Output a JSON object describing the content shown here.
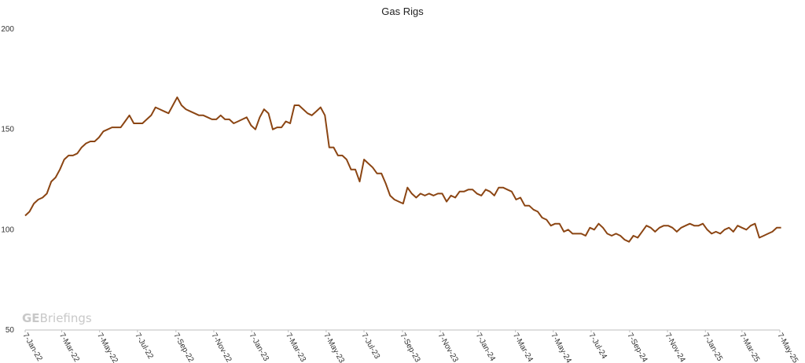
{
  "chart_data": {
    "type": "line",
    "title": "Gas Rigs",
    "xlabel": "",
    "ylabel": "",
    "ylim": [
      50,
      200
    ],
    "yticks": [
      50,
      100,
      150,
      200
    ],
    "xlim": [
      "2022-01-07",
      "2025-05-07"
    ],
    "xtick_labels": [
      "7-Jan-22",
      "7-Mar-22",
      "7-May-22",
      "7-Jul-22",
      "7-Sep-22",
      "7-Nov-22",
      "7-Jan-23",
      "7-Mar-23",
      "7-May-23",
      "7-Jul-23",
      "7-Sep-23",
      "7-Nov-23",
      "7-Jan-24",
      "7-Mar-24",
      "7-May-24",
      "7-Jul-24",
      "7-Sep-24",
      "7-Nov-24",
      "7-Jan-25",
      "7-Mar-25",
      "7-May-25"
    ],
    "grid": false,
    "legend": "none",
    "line_color": "#8B4513",
    "series": [
      {
        "points": [
          [
            "2022-01-07",
            107
          ],
          [
            "2022-01-14",
            109
          ],
          [
            "2022-01-21",
            113
          ],
          [
            "2022-01-28",
            115
          ],
          [
            "2022-02-04",
            116
          ],
          [
            "2022-02-11",
            118
          ],
          [
            "2022-02-18",
            124
          ],
          [
            "2022-02-25",
            126
          ],
          [
            "2022-03-04",
            130
          ],
          [
            "2022-03-11",
            135
          ],
          [
            "2022-03-18",
            137
          ],
          [
            "2022-03-25",
            137
          ],
          [
            "2022-04-01",
            138
          ],
          [
            "2022-04-08",
            141
          ],
          [
            "2022-04-15",
            143
          ],
          [
            "2022-04-22",
            144
          ],
          [
            "2022-04-29",
            144
          ],
          [
            "2022-05-06",
            146
          ],
          [
            "2022-05-13",
            149
          ],
          [
            "2022-05-20",
            150
          ],
          [
            "2022-05-27",
            151
          ],
          [
            "2022-06-03",
            151
          ],
          [
            "2022-06-10",
            151
          ],
          [
            "2022-06-17",
            154
          ],
          [
            "2022-06-24",
            157
          ],
          [
            "2022-07-01",
            153
          ],
          [
            "2022-07-08",
            153
          ],
          [
            "2022-07-15",
            153
          ],
          [
            "2022-07-22",
            155
          ],
          [
            "2022-07-29",
            157
          ],
          [
            "2022-08-05",
            161
          ],
          [
            "2022-08-12",
            160
          ],
          [
            "2022-08-19",
            159
          ],
          [
            "2022-08-26",
            158
          ],
          [
            "2022-09-02",
            162
          ],
          [
            "2022-09-09",
            166
          ],
          [
            "2022-09-16",
            162
          ],
          [
            "2022-09-23",
            160
          ],
          [
            "2022-09-30",
            159
          ],
          [
            "2022-10-07",
            158
          ],
          [
            "2022-10-14",
            157
          ],
          [
            "2022-10-21",
            157
          ],
          [
            "2022-10-28",
            156
          ],
          [
            "2022-11-04",
            155
          ],
          [
            "2022-11-11",
            155
          ],
          [
            "2022-11-18",
            157
          ],
          [
            "2022-11-25",
            155
          ],
          [
            "2022-12-02",
            155
          ],
          [
            "2022-12-09",
            153
          ],
          [
            "2022-12-16",
            154
          ],
          [
            "2022-12-23",
            155
          ],
          [
            "2022-12-30",
            156
          ],
          [
            "2023-01-06",
            152
          ],
          [
            "2023-01-13",
            150
          ],
          [
            "2023-01-20",
            156
          ],
          [
            "2023-01-27",
            160
          ],
          [
            "2023-02-03",
            158
          ],
          [
            "2023-02-10",
            150
          ],
          [
            "2023-02-17",
            151
          ],
          [
            "2023-02-24",
            151
          ],
          [
            "2023-03-03",
            154
          ],
          [
            "2023-03-10",
            153
          ],
          [
            "2023-03-17",
            162
          ],
          [
            "2023-03-24",
            162
          ],
          [
            "2023-03-31",
            160
          ],
          [
            "2023-04-07",
            158
          ],
          [
            "2023-04-14",
            157
          ],
          [
            "2023-04-21",
            159
          ],
          [
            "2023-04-28",
            161
          ],
          [
            "2023-05-05",
            157
          ],
          [
            "2023-05-12",
            141
          ],
          [
            "2023-05-19",
            141
          ],
          [
            "2023-05-26",
            137
          ],
          [
            "2023-06-02",
            137
          ],
          [
            "2023-06-09",
            135
          ],
          [
            "2023-06-16",
            130
          ],
          [
            "2023-06-23",
            130
          ],
          [
            "2023-06-30",
            124
          ],
          [
            "2023-07-07",
            135
          ],
          [
            "2023-07-14",
            133
          ],
          [
            "2023-07-21",
            131
          ],
          [
            "2023-07-28",
            128
          ],
          [
            "2023-08-04",
            128
          ],
          [
            "2023-08-11",
            123
          ],
          [
            "2023-08-18",
            117
          ],
          [
            "2023-08-25",
            115
          ],
          [
            "2023-09-01",
            114
          ],
          [
            "2023-09-08",
            113
          ],
          [
            "2023-09-15",
            121
          ],
          [
            "2023-09-22",
            118
          ],
          [
            "2023-09-29",
            116
          ],
          [
            "2023-10-06",
            118
          ],
          [
            "2023-10-13",
            117
          ],
          [
            "2023-10-20",
            118
          ],
          [
            "2023-10-27",
            117
          ],
          [
            "2023-11-03",
            118
          ],
          [
            "2023-11-10",
            118
          ],
          [
            "2023-11-17",
            114
          ],
          [
            "2023-11-24",
            117
          ],
          [
            "2023-12-01",
            116
          ],
          [
            "2023-12-08",
            119
          ],
          [
            "2023-12-15",
            119
          ],
          [
            "2023-12-22",
            120
          ],
          [
            "2023-12-29",
            120
          ],
          [
            "2024-01-05",
            118
          ],
          [
            "2024-01-12",
            117
          ],
          [
            "2024-01-19",
            120
          ],
          [
            "2024-01-26",
            119
          ],
          [
            "2024-02-02",
            117
          ],
          [
            "2024-02-09",
            121
          ],
          [
            "2024-02-16",
            121
          ],
          [
            "2024-02-23",
            120
          ],
          [
            "2024-03-01",
            119
          ],
          [
            "2024-03-08",
            115
          ],
          [
            "2024-03-15",
            116
          ],
          [
            "2024-03-22",
            112
          ],
          [
            "2024-03-29",
            112
          ],
          [
            "2024-04-05",
            110
          ],
          [
            "2024-04-12",
            109
          ],
          [
            "2024-04-19",
            106
          ],
          [
            "2024-04-26",
            105
          ],
          [
            "2024-05-03",
            102
          ],
          [
            "2024-05-10",
            103
          ],
          [
            "2024-05-17",
            103
          ],
          [
            "2024-05-24",
            99
          ],
          [
            "2024-05-31",
            100
          ],
          [
            "2024-06-07",
            98
          ],
          [
            "2024-06-14",
            98
          ],
          [
            "2024-06-21",
            98
          ],
          [
            "2024-06-28",
            97
          ],
          [
            "2024-07-05",
            101
          ],
          [
            "2024-07-12",
            100
          ],
          [
            "2024-07-19",
            103
          ],
          [
            "2024-07-26",
            101
          ],
          [
            "2024-08-02",
            98
          ],
          [
            "2024-08-09",
            97
          ],
          [
            "2024-08-16",
            98
          ],
          [
            "2024-08-23",
            97
          ],
          [
            "2024-08-30",
            95
          ],
          [
            "2024-09-06",
            94
          ],
          [
            "2024-09-13",
            97
          ],
          [
            "2024-09-20",
            96
          ],
          [
            "2024-09-27",
            99
          ],
          [
            "2024-10-04",
            102
          ],
          [
            "2024-10-11",
            101
          ],
          [
            "2024-10-18",
            99
          ],
          [
            "2024-10-25",
            101
          ],
          [
            "2024-11-01",
            102
          ],
          [
            "2024-11-08",
            102
          ],
          [
            "2024-11-15",
            101
          ],
          [
            "2024-11-22",
            99
          ],
          [
            "2024-11-29",
            101
          ],
          [
            "2024-12-06",
            102
          ],
          [
            "2024-12-13",
            103
          ],
          [
            "2024-12-20",
            102
          ],
          [
            "2024-12-27",
            102
          ],
          [
            "2025-01-03",
            103
          ],
          [
            "2025-01-10",
            100
          ],
          [
            "2025-01-17",
            98
          ],
          [
            "2025-01-24",
            99
          ],
          [
            "2025-01-31",
            98
          ],
          [
            "2025-02-07",
            100
          ],
          [
            "2025-02-14",
            101
          ],
          [
            "2025-02-21",
            99
          ],
          [
            "2025-02-28",
            102
          ],
          [
            "2025-03-07",
            101
          ],
          [
            "2025-03-14",
            100
          ],
          [
            "2025-03-21",
            102
          ],
          [
            "2025-03-28",
            103
          ],
          [
            "2025-04-04",
            96
          ],
          [
            "2025-04-11",
            97
          ],
          [
            "2025-04-18",
            98
          ],
          [
            "2025-04-25",
            99
          ],
          [
            "2025-05-02",
            101
          ],
          [
            "2025-05-09",
            101
          ]
        ]
      }
    ]
  },
  "watermark": {
    "bold": "GE",
    "regular": "Briefings"
  }
}
